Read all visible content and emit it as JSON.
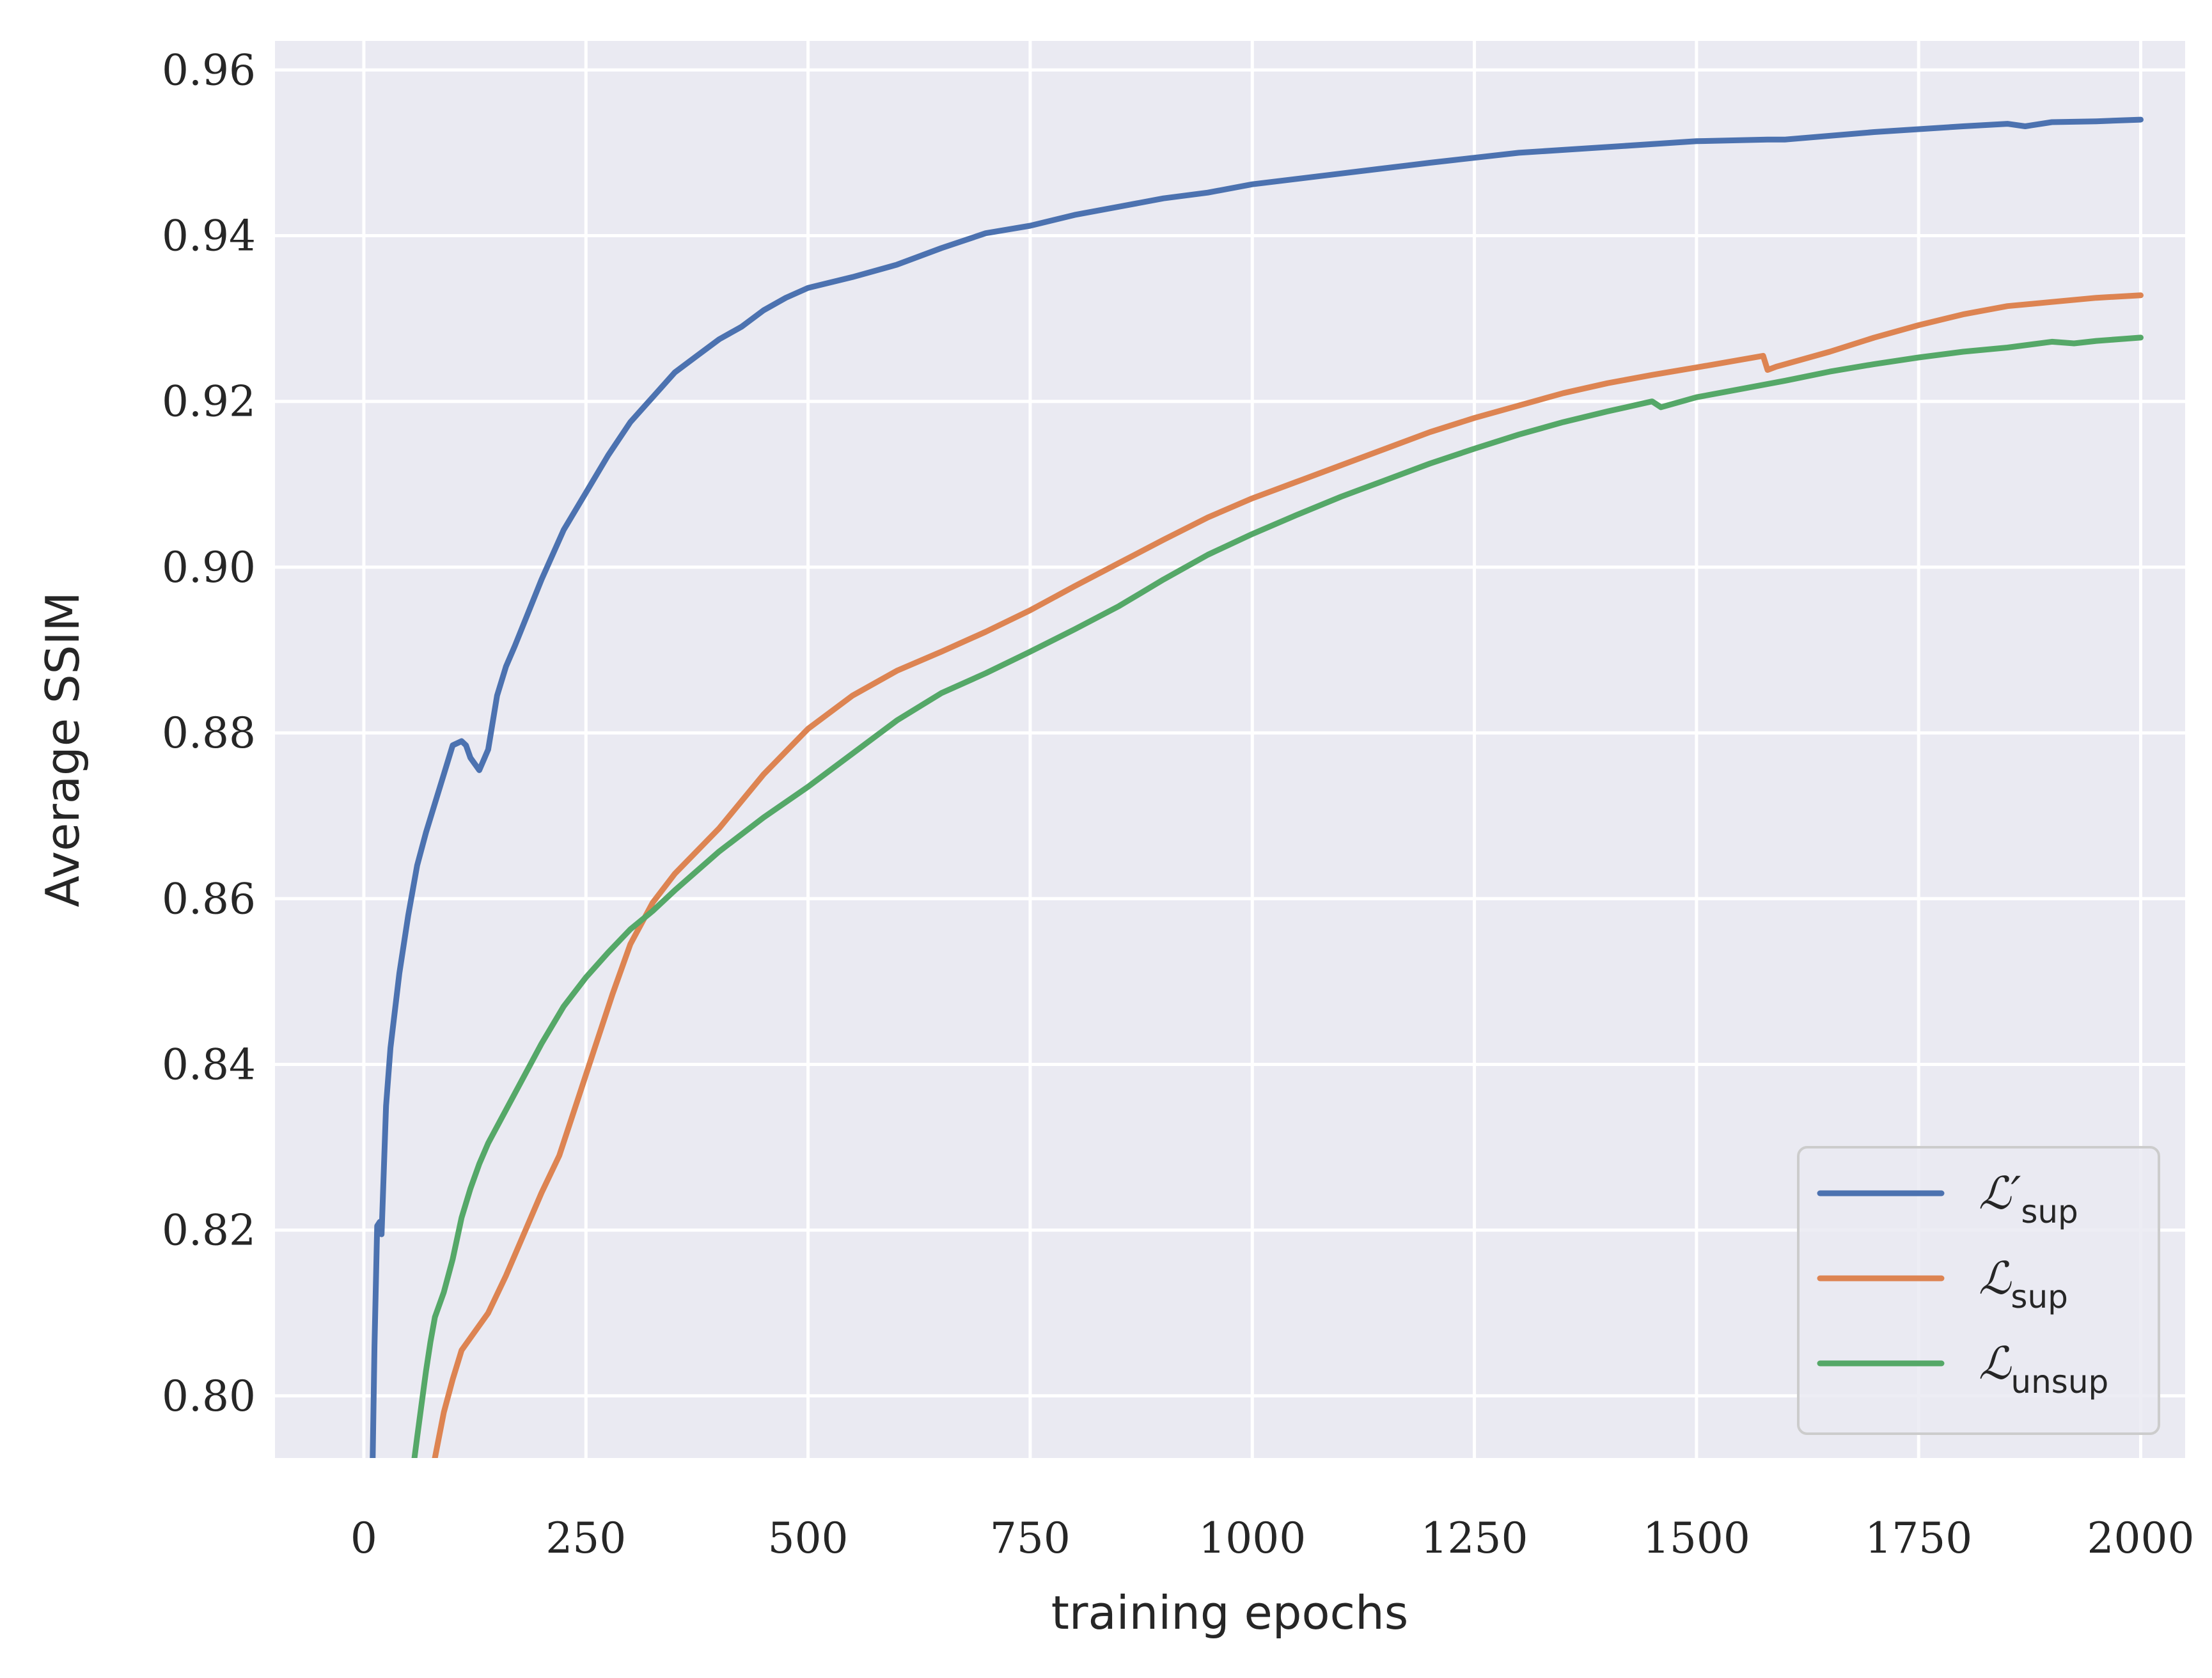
{
  "chart_data": {
    "type": "line",
    "title": "",
    "xlabel": "training epochs",
    "ylabel": "Average SSIM",
    "xlim": [
      -100,
      2050
    ],
    "ylim": [
      0.7925,
      0.9635
    ],
    "x_ticks": [
      0,
      250,
      500,
      750,
      1000,
      1250,
      1500,
      1750,
      2000
    ],
    "x_tick_labels": [
      "0",
      "250",
      "500",
      "750",
      "1000",
      "1250",
      "1500",
      "1750",
      "2000"
    ],
    "y_ticks": [
      0.8,
      0.82,
      0.84,
      0.86,
      0.88,
      0.9,
      0.92,
      0.94,
      0.96
    ],
    "y_tick_labels": [
      "0.80",
      "0.82",
      "0.84",
      "0.86",
      "0.88",
      "0.90",
      "0.92",
      "0.94",
      "0.96"
    ],
    "grid": true,
    "background": "#eaeaf2",
    "legend_position": "lower-right",
    "series": [
      {
        "name": "ℒ′sup",
        "name_main": "ℒ′",
        "name_sub": "sup",
        "color": "#4c72b0",
        "x": [
          10,
          12,
          15,
          18,
          20,
          25,
          30,
          40,
          50,
          60,
          70,
          80,
          90,
          100,
          110,
          115,
          120,
          130,
          140,
          150,
          160,
          170,
          200,
          225,
          250,
          275,
          300,
          325,
          350,
          375,
          400,
          425,
          450,
          475,
          500,
          550,
          600,
          650,
          700,
          750,
          800,
          850,
          900,
          950,
          1000,
          1100,
          1200,
          1300,
          1400,
          1500,
          1580,
          1600,
          1700,
          1800,
          1850,
          1870,
          1900,
          1950,
          2000
        ],
        "values": [
          0.7925,
          0.806,
          0.8205,
          0.821,
          0.8195,
          0.835,
          0.842,
          0.851,
          0.858,
          0.864,
          0.868,
          0.8715,
          0.875,
          0.8785,
          0.879,
          0.8785,
          0.877,
          0.8755,
          0.878,
          0.8845,
          0.888,
          0.8905,
          0.8985,
          0.9045,
          0.909,
          0.9135,
          0.9175,
          0.9205,
          0.9235,
          0.9255,
          0.9275,
          0.929,
          0.931,
          0.9325,
          0.9337,
          0.935,
          0.9365,
          0.9385,
          0.9403,
          0.9412,
          0.9425,
          0.9435,
          0.9445,
          0.9452,
          0.9462,
          0.9475,
          0.9488,
          0.95,
          0.9507,
          0.9514,
          0.9516,
          0.9516,
          0.9525,
          0.9532,
          0.9535,
          0.9532,
          0.9537,
          0.9538,
          0.954
        ]
      },
      {
        "name": "ℒsup",
        "name_main": "ℒ",
        "name_sub": "sup",
        "color": "#dd8452",
        "x": [
          80,
          90,
          100,
          110,
          120,
          140,
          160,
          180,
          200,
          220,
          240,
          260,
          280,
          300,
          325,
          350,
          400,
          450,
          500,
          550,
          600,
          650,
          700,
          750,
          800,
          850,
          900,
          950,
          1000,
          1050,
          1100,
          1150,
          1200,
          1250,
          1300,
          1350,
          1400,
          1450,
          1500,
          1575,
          1580,
          1590,
          1600,
          1650,
          1700,
          1750,
          1800,
          1850,
          1900,
          1950,
          2000
        ],
        "values": [
          0.7925,
          0.798,
          0.802,
          0.8055,
          0.807,
          0.81,
          0.8145,
          0.8195,
          0.8245,
          0.829,
          0.8355,
          0.842,
          0.8485,
          0.8545,
          0.8595,
          0.863,
          0.8685,
          0.875,
          0.8805,
          0.8845,
          0.8875,
          0.8898,
          0.8922,
          0.8948,
          0.8977,
          0.9005,
          0.9033,
          0.906,
          0.9083,
          0.9103,
          0.9123,
          0.9143,
          0.9163,
          0.918,
          0.9195,
          0.921,
          0.9222,
          0.9232,
          0.9241,
          0.9255,
          0.9238,
          0.9242,
          0.9245,
          0.926,
          0.9277,
          0.9292,
          0.9305,
          0.9315,
          0.932,
          0.9325,
          0.9328
        ]
      },
      {
        "name": "ℒunsup",
        "name_main": "ℒ",
        "name_sub": "unsup",
        "color": "#55a868",
        "x": [
          57,
          60,
          65,
          70,
          75,
          80,
          90,
          100,
          110,
          120,
          130,
          140,
          150,
          175,
          200,
          225,
          250,
          275,
          300,
          325,
          350,
          400,
          450,
          500,
          550,
          600,
          650,
          700,
          750,
          800,
          850,
          900,
          950,
          1000,
          1050,
          1100,
          1150,
          1200,
          1250,
          1300,
          1350,
          1400,
          1450,
          1460,
          1500,
          1550,
          1600,
          1650,
          1700,
          1750,
          1800,
          1850,
          1900,
          1925,
          1950,
          1975,
          2000
        ],
        "values": [
          0.7925,
          0.795,
          0.799,
          0.803,
          0.8065,
          0.8095,
          0.8125,
          0.8165,
          0.8215,
          0.825,
          0.828,
          0.8305,
          0.8325,
          0.8375,
          0.8425,
          0.847,
          0.8505,
          0.8535,
          0.8563,
          0.8585,
          0.861,
          0.8657,
          0.8698,
          0.8735,
          0.8775,
          0.8815,
          0.8848,
          0.8872,
          0.8898,
          0.8925,
          0.8953,
          0.8985,
          0.9015,
          0.904,
          0.9063,
          0.9085,
          0.9105,
          0.9125,
          0.9143,
          0.916,
          0.9175,
          0.9188,
          0.92,
          0.9193,
          0.9205,
          0.9215,
          0.9225,
          0.9236,
          0.9245,
          0.9253,
          0.926,
          0.9265,
          0.9272,
          0.927,
          0.9273,
          0.9275,
          0.9277
        ]
      }
    ]
  }
}
